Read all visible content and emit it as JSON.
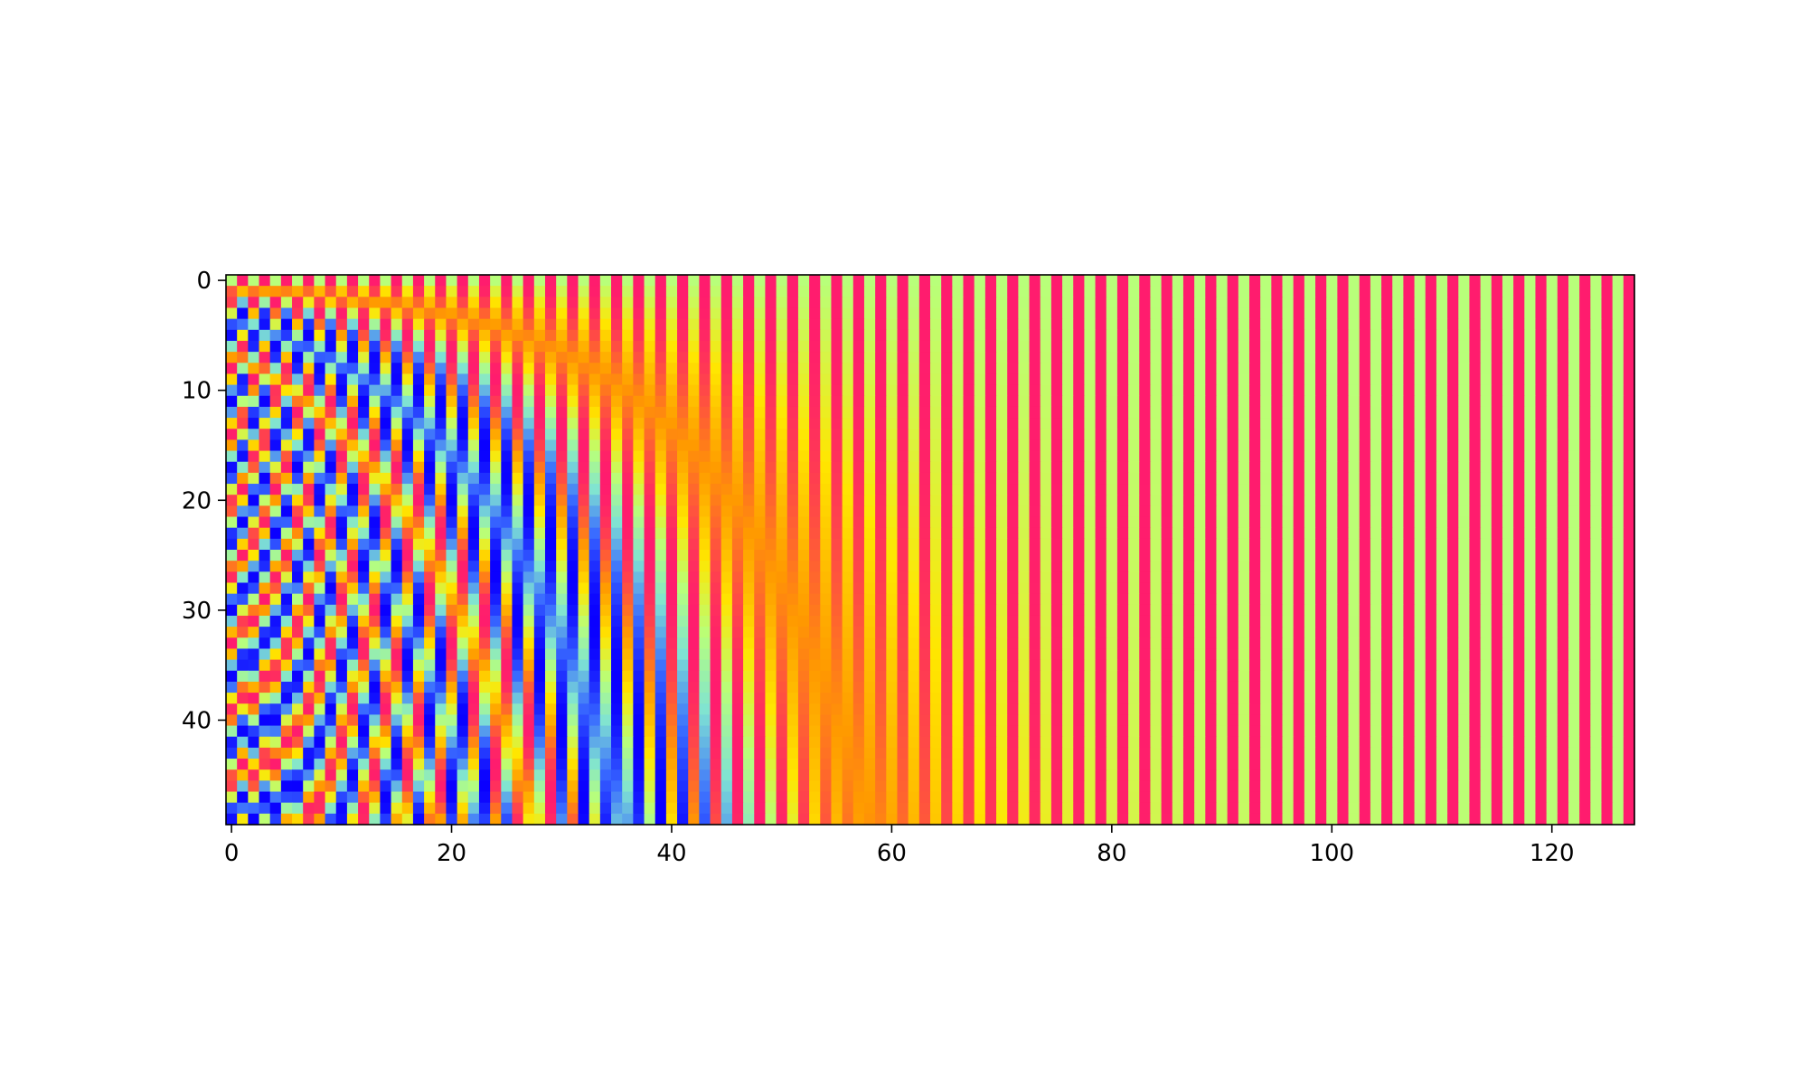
{
  "chart_data": {
    "type": "heatmap",
    "title": "",
    "xlabel": "",
    "ylabel": "",
    "n_rows": 50,
    "n_cols": 128,
    "xlim": [
      -0.5,
      127.5
    ],
    "ylim": [
      49.5,
      -0.5
    ],
    "y_axis_inverted": true,
    "x_ticks": [
      0,
      20,
      40,
      60,
      80,
      100,
      120
    ],
    "x_tick_labels": [
      "0",
      "20",
      "40",
      "60",
      "80",
      "100",
      "120"
    ],
    "y_ticks": [
      0,
      10,
      20,
      30,
      40
    ],
    "y_tick_labels": [
      "0",
      "10",
      "20",
      "30",
      "40"
    ],
    "value_range": [
      -1,
      1
    ],
    "values_rule": "positional encoding: even columns sin(row / 10000^(col/128)), odd columns cos(row / 10000^((col-1)/128))",
    "colormap": "gist_rainbow-like",
    "colormap_stops": [
      "#0a00ff",
      "#3a6cff",
      "#7fe3d3",
      "#b8ff7a",
      "#ffe600",
      "#ff9a00",
      "#ff1c6e"
    ],
    "grid": false,
    "legend": "none",
    "colorbar": false
  }
}
